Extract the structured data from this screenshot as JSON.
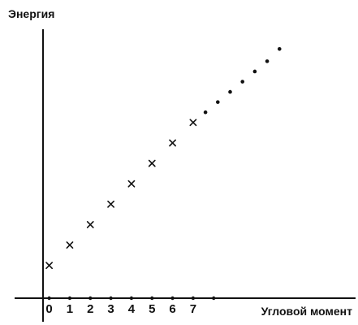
{
  "chart_data": {
    "type": "scatter",
    "xlabel": "Угловой момент",
    "ylabel": "Энергия",
    "x_tick_labels": [
      "0",
      "1",
      "2",
      "3",
      "4",
      "5",
      "6",
      "7"
    ],
    "series": [
      {
        "marker": "cross",
        "points": [
          [
            0,
            1.0
          ],
          [
            1,
            2.0
          ],
          [
            2,
            3.0
          ],
          [
            3,
            4.0
          ],
          [
            4,
            5.0
          ],
          [
            5,
            6.0
          ],
          [
            6,
            7.0
          ],
          [
            7,
            8.0
          ]
        ]
      },
      {
        "marker": "dot",
        "points": [
          [
            7.6,
            8.5
          ],
          [
            8.2,
            9.0
          ],
          [
            8.8,
            9.5
          ],
          [
            9.4,
            10.0
          ],
          [
            10.0,
            10.5
          ],
          [
            10.6,
            11.0
          ],
          [
            11.2,
            11.6
          ]
        ]
      }
    ],
    "axis_dots": [
      0,
      1,
      2,
      3,
      4,
      5,
      6,
      7,
      8
    ],
    "xlim": [
      -0.3,
      14.9
    ],
    "ylim": [
      -1.6,
      14.0
    ],
    "grid": false,
    "legend": "none"
  }
}
